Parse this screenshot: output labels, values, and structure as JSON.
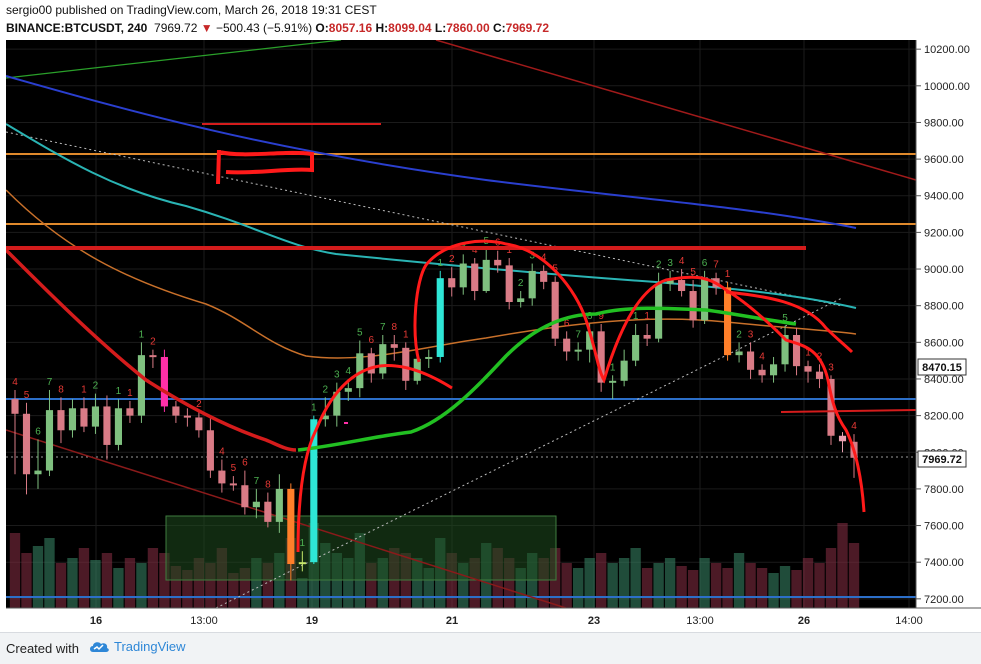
{
  "header": {
    "author": "sergio00",
    "publish_text": "published on TradingView.com, March 26, 2018 19:31 CEST",
    "symbol": "BINANCE:BTCUSDT, 240",
    "last_price": "7969.72",
    "change": "−500.43 (−5.91%)",
    "ohlc": {
      "o_label": "O:",
      "o": "8057.16",
      "h_label": "H:",
      "h": "8099.04",
      "l_label": "L:",
      "l": "7860.00",
      "c_label": "C:",
      "c": "7969.72"
    }
  },
  "footer": {
    "created_with": "Created with",
    "brand": "TradingView"
  },
  "price_axis": {
    "labels": [
      "10200.00",
      "10000.00",
      "9800.00",
      "9600.00",
      "9400.00",
      "9200.00",
      "9000.00",
      "8800.00",
      "8600.00",
      "8400.00",
      "8200.00",
      "8000.00",
      "7800.00",
      "7600.00",
      "7400.00",
      "7200.00"
    ],
    "marker_upper": "8470.15",
    "marker_last": "7969.72"
  },
  "time_axis": {
    "labels": [
      "16",
      "13:00",
      "19",
      "21",
      "23",
      "13:00",
      "26",
      "14:00"
    ]
  },
  "colors": {
    "background": "#000000",
    "up_candle": "#7fc07f",
    "down_candle": "#d97b86",
    "highlight_up": "#2ee6d6",
    "highlight_down": "#ff7f2a",
    "magenta": "#ff2fa8",
    "red_drawing": "#ff1a1a",
    "green_ma": "#22c022",
    "teal_ma": "#2ab4b4",
    "blue_ma": "#2a3fcf",
    "orange_ma": "#c8702a",
    "orange_level": "#e08a2c"
  },
  "chart_data": {
    "type": "candlestick",
    "ylim": [
      7150,
      10250
    ],
    "candles": [
      {
        "o": 8290,
        "c": 8210,
        "h": 8340,
        "l": 7880,
        "td": "4"
      },
      {
        "o": 8210,
        "c": 7880,
        "h": 8270,
        "l": 7770,
        "td": "5"
      },
      {
        "o": 7880,
        "c": 7900,
        "h": 8070,
        "l": 7800,
        "td": "6"
      },
      {
        "o": 7900,
        "c": 8230,
        "h": 8340,
        "l": 7870,
        "td": "7"
      },
      {
        "o": 8230,
        "c": 8120,
        "h": 8300,
        "l": 8050,
        "td": "8"
      },
      {
        "o": 8120,
        "c": 8240,
        "h": 8290,
        "l": 8080,
        "td": ""
      },
      {
        "o": 8240,
        "c": 8140,
        "h": 8300,
        "l": 8110,
        "td": "1"
      },
      {
        "o": 8140,
        "c": 8250,
        "h": 8320,
        "l": 8100,
        "td": "2"
      },
      {
        "o": 8250,
        "c": 8040,
        "h": 8310,
        "l": 7960,
        "td": ""
      },
      {
        "o": 8040,
        "c": 8240,
        "h": 8290,
        "l": 8010,
        "td": "1"
      },
      {
        "o": 8240,
        "c": 8200,
        "h": 8280,
        "l": 8160,
        "td": "1"
      },
      {
        "o": 8200,
        "c": 8530,
        "h": 8600,
        "l": 8160,
        "td": "1"
      },
      {
        "o": 8530,
        "c": 8520,
        "h": 8560,
        "l": 8460,
        "td": "2"
      },
      {
        "o": 8520,
        "c": 8250,
        "h": 8560,
        "l": 8220,
        "td": ""
      },
      {
        "o": 8250,
        "c": 8200,
        "h": 8280,
        "l": 8160,
        "td": ""
      },
      {
        "o": 8200,
        "c": 8190,
        "h": 8240,
        "l": 8140,
        "td": ""
      },
      {
        "o": 8190,
        "c": 8120,
        "h": 8220,
        "l": 8080,
        "td": "2"
      },
      {
        "o": 8120,
        "c": 7900,
        "h": 8200,
        "l": 7860,
        "td": ""
      },
      {
        "o": 7900,
        "c": 7830,
        "h": 7960,
        "l": 7780,
        "td": "4"
      },
      {
        "o": 7830,
        "c": 7820,
        "h": 7870,
        "l": 7790,
        "td": "5"
      },
      {
        "o": 7820,
        "c": 7700,
        "h": 7900,
        "l": 7660,
        "td": "6"
      },
      {
        "o": 7700,
        "c": 7730,
        "h": 7800,
        "l": 7640,
        "td": "7"
      },
      {
        "o": 7730,
        "c": 7620,
        "h": 7780,
        "l": 7590,
        "td": "8"
      },
      {
        "o": 7620,
        "c": 7800,
        "h": 7880,
        "l": 7560,
        "td": ""
      },
      {
        "o": 7800,
        "c": 7390,
        "h": 7830,
        "l": 7300,
        "td": ""
      },
      {
        "o": 7390,
        "c": 7400,
        "h": 7460,
        "l": 7350,
        "td": "1"
      },
      {
        "o": 7400,
        "c": 8180,
        "h": 8200,
        "l": 7390,
        "td": "1"
      },
      {
        "o": 8180,
        "c": 8200,
        "h": 8300,
        "l": 8140,
        "td": "2"
      },
      {
        "o": 8200,
        "c": 8330,
        "h": 8380,
        "l": 8140,
        "td": "3"
      },
      {
        "o": 8330,
        "c": 8350,
        "h": 8400,
        "l": 8280,
        "td": "4"
      },
      {
        "o": 8350,
        "c": 8540,
        "h": 8610,
        "l": 8300,
        "td": "5"
      },
      {
        "o": 8540,
        "c": 8430,
        "h": 8570,
        "l": 8380,
        "td": "6"
      },
      {
        "o": 8430,
        "c": 8590,
        "h": 8640,
        "l": 8400,
        "td": "7"
      },
      {
        "o": 8590,
        "c": 8570,
        "h": 8640,
        "l": 8500,
        "td": "8"
      },
      {
        "o": 8570,
        "c": 8390,
        "h": 8600,
        "l": 8340,
        "td": "1"
      },
      {
        "o": 8390,
        "c": 8510,
        "h": 8560,
        "l": 8370,
        "td": ""
      },
      {
        "o": 8510,
        "c": 8520,
        "h": 8560,
        "l": 8460,
        "td": ""
      },
      {
        "o": 8520,
        "c": 8950,
        "h": 8990,
        "l": 8490,
        "td": "1"
      },
      {
        "o": 8950,
        "c": 8900,
        "h": 9010,
        "l": 8850,
        "td": "2"
      },
      {
        "o": 8900,
        "c": 9030,
        "h": 9080,
        "l": 8860,
        "td": "3"
      },
      {
        "o": 9030,
        "c": 8880,
        "h": 9060,
        "l": 8830,
        "td": "4"
      },
      {
        "o": 8880,
        "c": 9050,
        "h": 9110,
        "l": 8870,
        "td": "5"
      },
      {
        "o": 9050,
        "c": 9020,
        "h": 9100,
        "l": 8980,
        "td": "6"
      },
      {
        "o": 9020,
        "c": 8820,
        "h": 9060,
        "l": 8780,
        "td": "1"
      },
      {
        "o": 8820,
        "c": 8840,
        "h": 8880,
        "l": 8790,
        "td": "2"
      },
      {
        "o": 8840,
        "c": 8990,
        "h": 9030,
        "l": 8800,
        "td": "3"
      },
      {
        "o": 8990,
        "c": 8930,
        "h": 9020,
        "l": 8890,
        "td": "4"
      },
      {
        "o": 8930,
        "c": 8620,
        "h": 8960,
        "l": 8580,
        "td": "5"
      },
      {
        "o": 8620,
        "c": 8550,
        "h": 8660,
        "l": 8500,
        "td": "6"
      },
      {
        "o": 8550,
        "c": 8560,
        "h": 8600,
        "l": 8500,
        "td": "7"
      },
      {
        "o": 8560,
        "c": 8660,
        "h": 8700,
        "l": 8490,
        "td": "8"
      },
      {
        "o": 8660,
        "c": 8380,
        "h": 8700,
        "l": 8330,
        "td": "9"
      },
      {
        "o": 8380,
        "c": 8390,
        "h": 8420,
        "l": 8290,
        "td": "1"
      },
      {
        "o": 8390,
        "c": 8500,
        "h": 8560,
        "l": 8360,
        "td": ""
      },
      {
        "o": 8500,
        "c": 8640,
        "h": 8700,
        "l": 8470,
        "td": "1"
      },
      {
        "o": 8640,
        "c": 8620,
        "h": 8700,
        "l": 8580,
        "td": "1"
      },
      {
        "o": 8620,
        "c": 8920,
        "h": 8980,
        "l": 8600,
        "td": "2"
      },
      {
        "o": 8920,
        "c": 8940,
        "h": 8990,
        "l": 8880,
        "td": "3"
      },
      {
        "o": 8940,
        "c": 8880,
        "h": 9000,
        "l": 8850,
        "td": "4"
      },
      {
        "o": 8880,
        "c": 8720,
        "h": 8940,
        "l": 8680,
        "td": "5"
      },
      {
        "o": 8720,
        "c": 8950,
        "h": 8990,
        "l": 8700,
        "td": "6"
      },
      {
        "o": 8950,
        "c": 8900,
        "h": 8980,
        "l": 8860,
        "td": "7"
      },
      {
        "o": 8900,
        "c": 8530,
        "h": 8930,
        "l": 8500,
        "td": "1"
      },
      {
        "o": 8530,
        "c": 8550,
        "h": 8600,
        "l": 8490,
        "td": "2"
      },
      {
        "o": 8550,
        "c": 8450,
        "h": 8600,
        "l": 8400,
        "td": "3"
      },
      {
        "o": 8450,
        "c": 8420,
        "h": 8480,
        "l": 8380,
        "td": "4"
      },
      {
        "o": 8420,
        "c": 8480,
        "h": 8520,
        "l": 8380,
        "td": ""
      },
      {
        "o": 8480,
        "c": 8640,
        "h": 8690,
        "l": 8440,
        "td": "5"
      },
      {
        "o": 8640,
        "c": 8470,
        "h": 8680,
        "l": 8420,
        "td": ""
      },
      {
        "o": 8470,
        "c": 8440,
        "h": 8500,
        "l": 8380,
        "td": "1"
      },
      {
        "o": 8440,
        "c": 8400,
        "h": 8480,
        "l": 8350,
        "td": "2"
      },
      {
        "o": 8400,
        "c": 8090,
        "h": 8420,
        "l": 8040,
        "td": "3"
      },
      {
        "o": 8090,
        "c": 8060,
        "h": 8110,
        "l": 8000,
        "td": ""
      },
      {
        "o": 8057.16,
        "c": 7969.72,
        "h": 8099.04,
        "l": 7860,
        "td": "4"
      }
    ],
    "volumes": [
      0.75,
      0.55,
      0.62,
      0.7,
      0.45,
      0.5,
      0.6,
      0.48,
      0.55,
      0.4,
      0.5,
      0.45,
      0.6,
      0.55,
      0.42,
      0.38,
      0.5,
      0.45,
      0.6,
      0.35,
      0.4,
      0.5,
      0.45,
      0.55,
      0.7,
      0.3,
      0.85,
      0.65,
      0.55,
      0.5,
      0.75,
      0.45,
      0.5,
      0.6,
      0.55,
      0.5,
      0.4,
      0.7,
      0.55,
      0.45,
      0.5,
      0.65,
      0.6,
      0.5,
      0.4,
      0.55,
      0.5,
      0.6,
      0.45,
      0.4,
      0.5,
      0.55,
      0.45,
      0.5,
      0.6,
      0.4,
      0.45,
      0.5,
      0.42,
      0.38,
      0.5,
      0.45,
      0.4,
      0.55,
      0.45,
      0.4,
      0.35,
      0.42,
      0.38,
      0.5,
      0.45,
      0.6,
      0.85,
      0.65
    ]
  }
}
